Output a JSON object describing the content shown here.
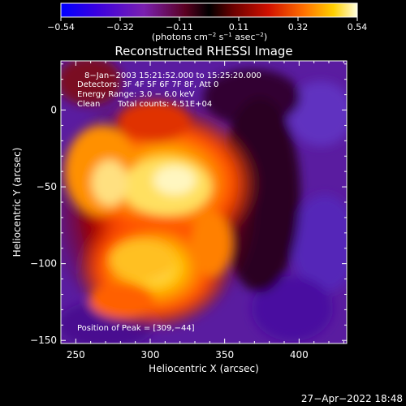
{
  "chart_data": {
    "type": "heatmap",
    "title": "Reconstructed RHESSI Image",
    "xlabel": "Heliocentric X (arcsec)",
    "ylabel": "Heliocentric Y (arcsec)",
    "xlim": [
      240,
      432
    ],
    "ylim": [
      -152,
      32
    ],
    "x_ticks": [
      250,
      300,
      350,
      400
    ],
    "y_ticks": [
      0,
      -50,
      -100,
      -150
    ],
    "colorbar": {
      "ticks": [
        "−0.54",
        "−0.32",
        "−0.11",
        "0.11",
        "0.32",
        "0.54"
      ],
      "range": [
        -0.54,
        0.54
      ],
      "label_main": "(photons cm",
      "label_exp1": "−2",
      "label_mid": " s",
      "label_exp2": "−1",
      "label_end": " asec",
      "label_exp3": "−2",
      "label_close": ")"
    },
    "annotations": {
      "time": "8−Jan−2003 15:21:52.000 to 15:25:20.000",
      "detectors": "Detectors: 3F 4F 5F 6F 7F 8F, Att 0",
      "energy": "Energy Range: 3.0 − 6.0 keV",
      "method": "Clean",
      "counts": "Total counts: 4.51E+04",
      "peak": "Position of Peak = [309,−44]"
    },
    "peak": [
      309,
      -44
    ],
    "timestamp": "27−Apr−2022 18:48"
  }
}
